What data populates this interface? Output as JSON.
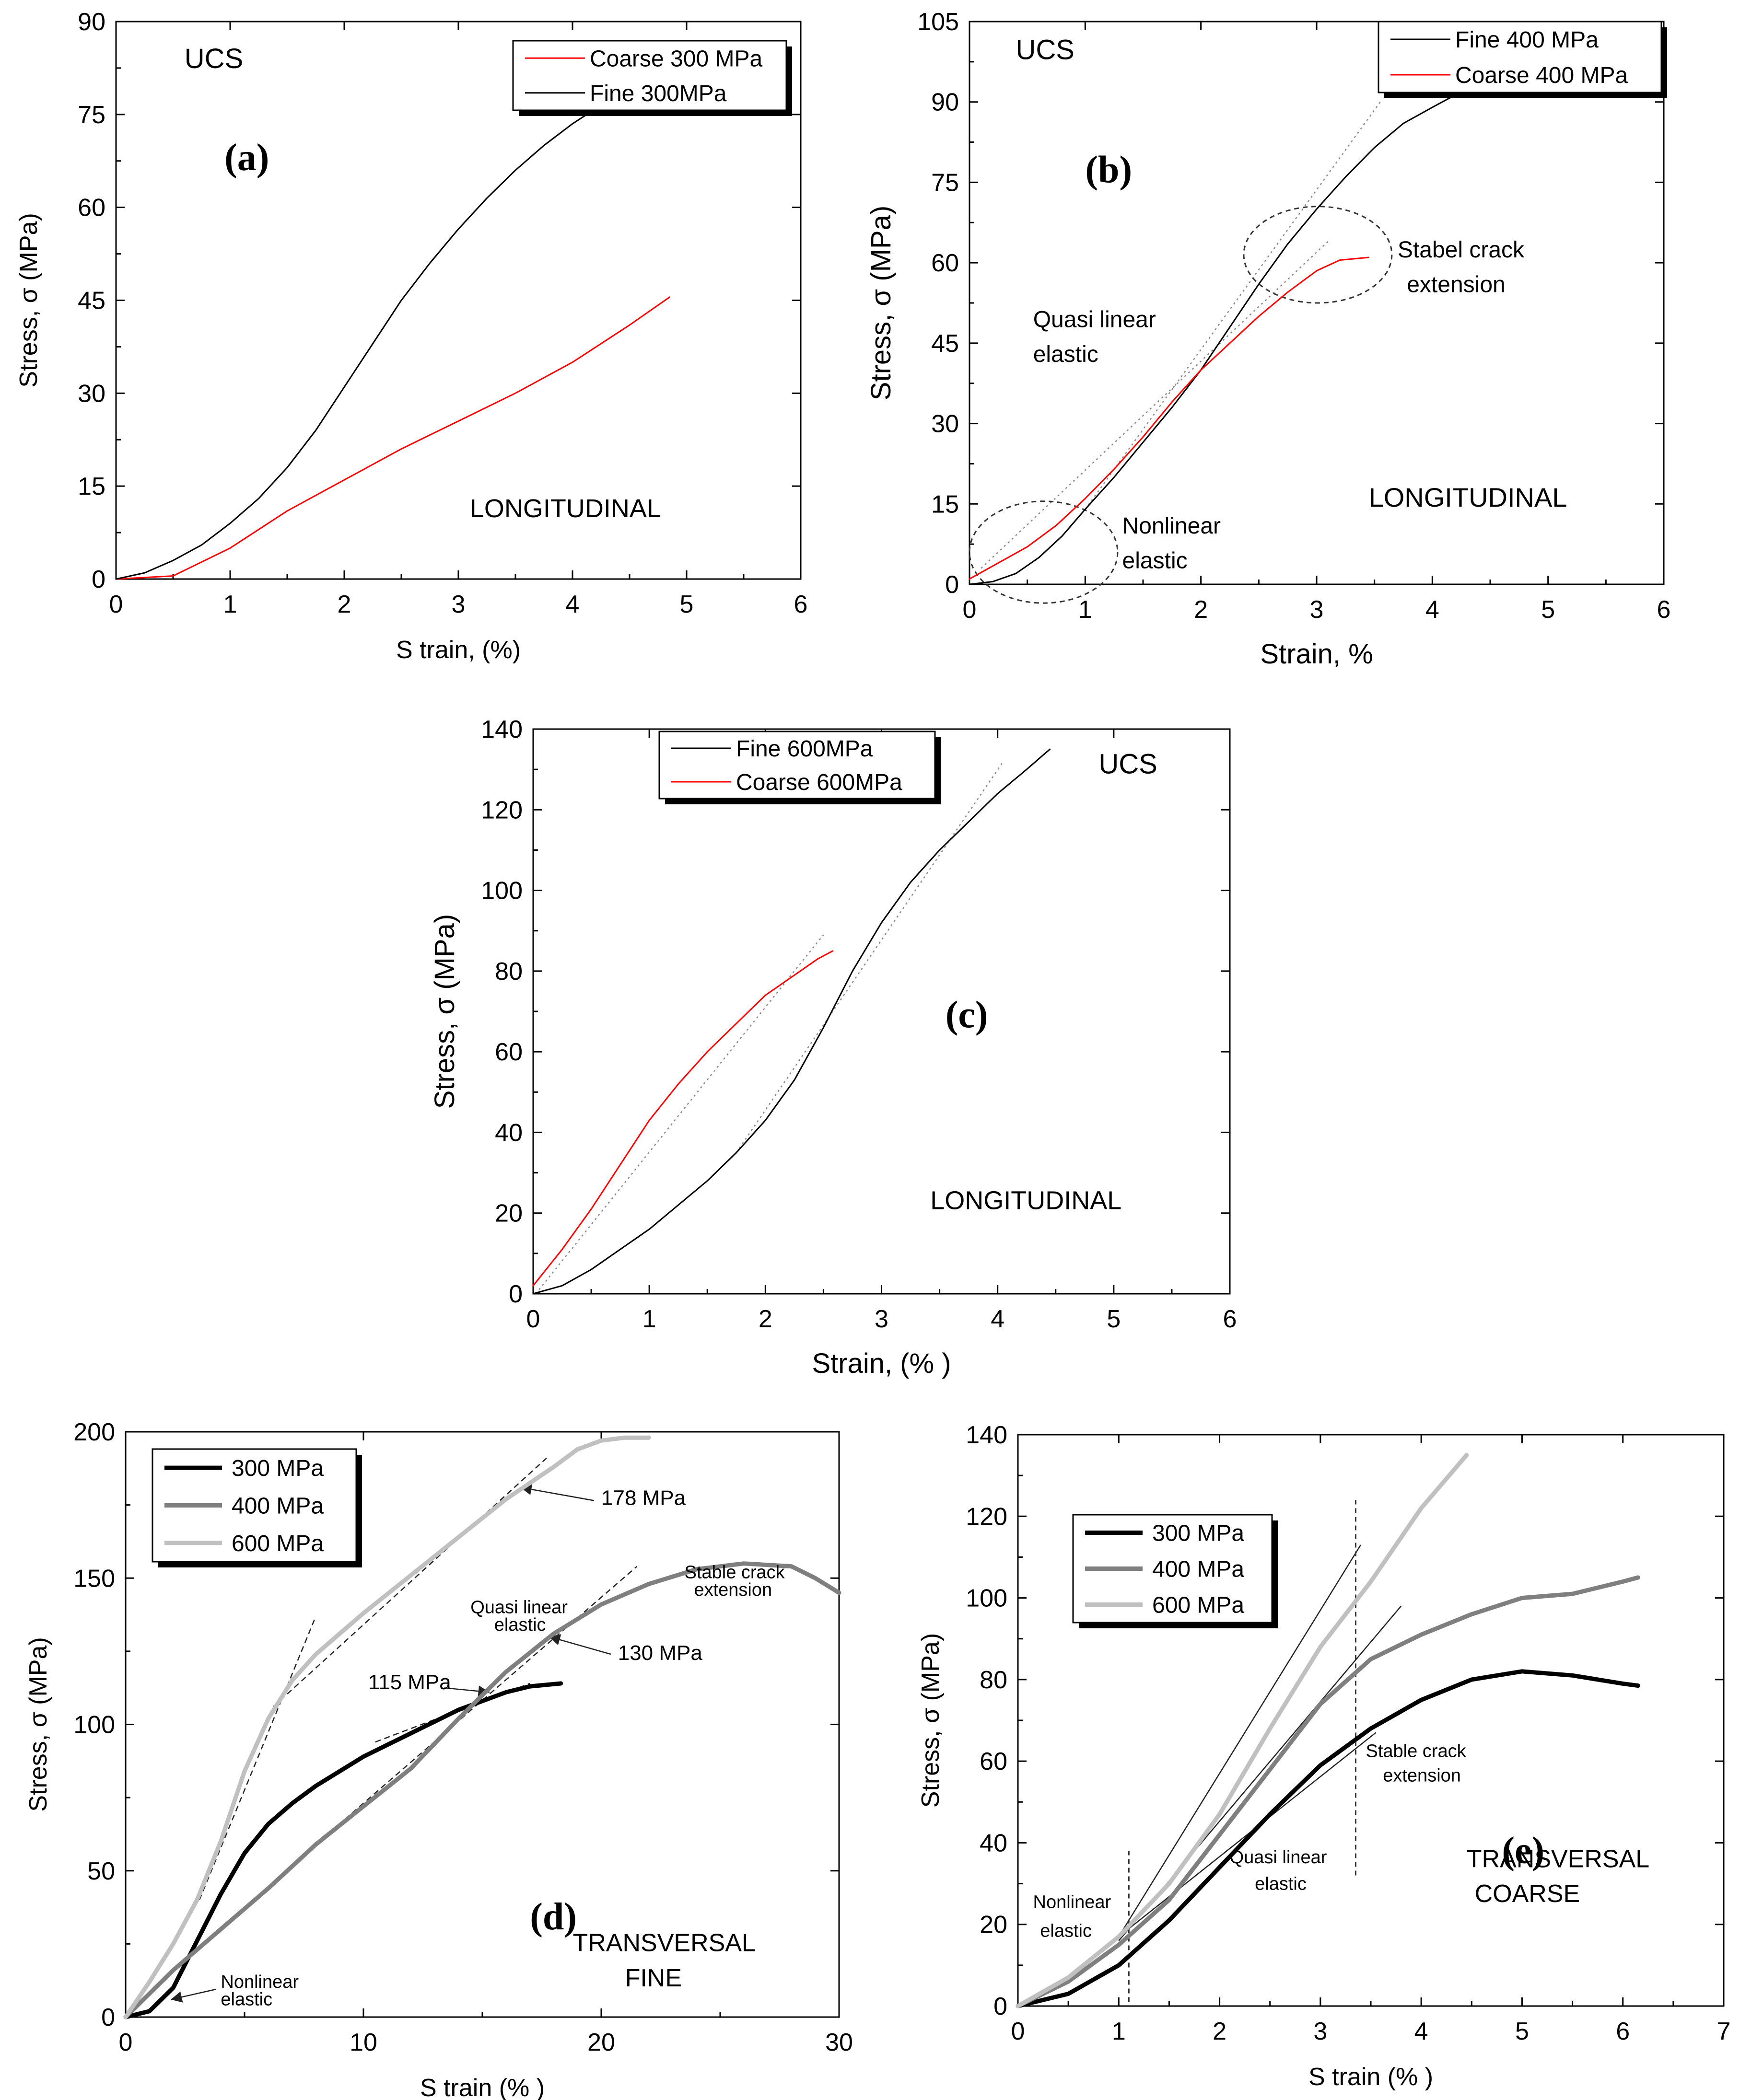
{
  "chart_data": [
    {
      "id": "a",
      "type": "line",
      "panel_label": "(a)",
      "xlabel": "S train,  (%)",
      "ylabel": "Stress, σ (MPa)",
      "xlim": [
        0,
        6
      ],
      "ylim": [
        0,
        90
      ],
      "xticks": [
        "0",
        "1",
        "2",
        "3",
        "4",
        "5",
        "6"
      ],
      "yticks": [
        "0",
        "15",
        "30",
        "45",
        "60",
        "75",
        "90"
      ],
      "legend": {
        "placement": "top-right"
      },
      "annotations": [
        "UCS",
        "LONGITUDINAL"
      ],
      "series": [
        {
          "name": "Coarse 300 MPa",
          "color": "#ff0000",
          "width": "thin",
          "x": [
            0,
            0.5,
            1,
            1.5,
            2,
            2.5,
            3,
            3.5,
            4,
            4.5,
            4.85
          ],
          "y": [
            0,
            0.5,
            5,
            11,
            16,
            21,
            25.5,
            30,
            35,
            41,
            45.5
          ]
        },
        {
          "name": "Fine 300MPa",
          "color": "#000000",
          "width": "thin",
          "x": [
            0,
            0.25,
            0.5,
            0.75,
            1,
            1.25,
            1.5,
            1.75,
            2,
            2.25,
            2.5,
            2.75,
            3,
            3.25,
            3.5,
            3.75,
            4,
            4.25,
            4.5
          ],
          "y": [
            0,
            1,
            3,
            5.5,
            9,
            13,
            18,
            24,
            31,
            38,
            45,
            51,
            56.5,
            61.5,
            66,
            70,
            73.5,
            76.5,
            79
          ]
        }
      ]
    },
    {
      "id": "b",
      "type": "line",
      "panel_label": "(b)",
      "xlabel": "Strain,  %",
      "ylabel": "Stress, σ (MPa)",
      "xlim": [
        0,
        6
      ],
      "ylim": [
        0,
        105
      ],
      "xticks": [
        "0",
        "1",
        "2",
        "3",
        "4",
        "5",
        "6"
      ],
      "yticks": [
        "0",
        "15",
        "30",
        "45",
        "60",
        "75",
        "90",
        "105"
      ],
      "legend": {
        "placement": "top-right"
      },
      "annotations": [
        "UCS",
        "LONGITUDINAL",
        "Quasi linear",
        "elastic",
        "Nonlinear",
        "elastic",
        "Stabel crack",
        "extension"
      ],
      "series": [
        {
          "name": "Fine 400 MPa",
          "color": "#000000",
          "width": "thin",
          "x": [
            0,
            0.2,
            0.4,
            0.6,
            0.8,
            1,
            1.25,
            1.5,
            1.75,
            2,
            2.25,
            2.5,
            2.75,
            3,
            3.25,
            3.5,
            3.75,
            4,
            4.3
          ],
          "y": [
            0,
            0.5,
            2,
            5,
            9,
            14,
            20,
            26.5,
            33,
            40,
            48,
            56,
            63.5,
            70,
            76,
            81.5,
            86,
            89,
            92.5
          ]
        },
        {
          "name": "Coarse 400 MPa",
          "color": "#ff0000",
          "width": "thin",
          "x": [
            0,
            0.25,
            0.5,
            0.75,
            1,
            1.25,
            1.5,
            1.75,
            2,
            2.25,
            2.5,
            2.75,
            3,
            3.2,
            3.45
          ],
          "y": [
            1,
            4,
            7,
            11,
            16,
            21.5,
            27.5,
            34,
            40,
            45,
            50,
            54.5,
            58.5,
            60.5,
            61
          ]
        }
      ]
    },
    {
      "id": "c",
      "type": "line",
      "panel_label": "(c)",
      "xlabel": "Strain, (% )",
      "ylabel": "Stress, σ (MPa)",
      "xlim": [
        0,
        6
      ],
      "ylim": [
        0,
        140
      ],
      "xticks": [
        "0",
        "1",
        "2",
        "3",
        "4",
        "5",
        "6"
      ],
      "yticks": [
        "0",
        "20",
        "40",
        "60",
        "80",
        "100",
        "120",
        "140"
      ],
      "legend": {
        "placement": "top-left"
      },
      "annotations": [
        "UCS",
        "LONGITUDINAL"
      ],
      "series": [
        {
          "name": "Fine 600MPa",
          "color": "#000000",
          "width": "thin",
          "x": [
            0,
            0.25,
            0.5,
            0.75,
            1,
            1.25,
            1.5,
            1.75,
            2,
            2.25,
            2.5,
            2.75,
            3,
            3.25,
            3.5,
            3.75,
            4,
            4.25,
            4.45
          ],
          "y": [
            0,
            2,
            6,
            11,
            16,
            22,
            28,
            35,
            43,
            53,
            66,
            80,
            92,
            102,
            110,
            117,
            124,
            130,
            135
          ]
        },
        {
          "name": "Coarse 600MPa",
          "color": "#ff0000",
          "width": "thin",
          "x": [
            0,
            0.25,
            0.5,
            0.75,
            1,
            1.25,
            1.5,
            1.75,
            2,
            2.25,
            2.45,
            2.58
          ],
          "y": [
            2,
            11,
            21,
            32,
            43,
            52,
            60,
            67,
            74,
            79,
            83,
            85
          ]
        }
      ]
    },
    {
      "id": "d",
      "type": "line",
      "panel_label": "(d)",
      "xlabel": "S train  (%  )",
      "ylabel": "Stress, σ (MPa)",
      "xlim": [
        0,
        30
      ],
      "ylim": [
        0,
        200
      ],
      "xticks": [
        "0",
        "10",
        "20",
        "30"
      ],
      "yticks": [
        "0",
        "50",
        "100",
        "150",
        "200"
      ],
      "legend": {
        "placement": "top-left"
      },
      "annotations": [
        "TRANSVERSAL",
        "FINE",
        "Nonlinear",
        "elastic",
        "Quasi linear",
        "elastic",
        "Stable crack",
        "extension",
        "178 MPa",
        "130 MPa",
        "115 MPa"
      ],
      "series": [
        {
          "name": "300 MPa",
          "color": "#000000",
          "width": "thick",
          "x": [
            0,
            1,
            2,
            3,
            4,
            5,
            6,
            7,
            8,
            9,
            10,
            11,
            12,
            13,
            14,
            15,
            16,
            17,
            18.3
          ],
          "y": [
            0,
            2,
            10,
            26,
            42,
            56,
            66,
            73,
            79,
            84,
            89,
            93,
            97,
            101,
            105,
            108,
            111,
            113,
            114
          ]
        },
        {
          "name": "400 MPa",
          "color": "#7f7f7f",
          "width": "thick",
          "x": [
            0,
            2,
            4,
            6,
            8,
            10,
            12,
            14,
            16,
            18,
            20,
            22,
            24,
            26,
            28,
            29,
            30
          ],
          "y": [
            0,
            16,
            30,
            44,
            59,
            72,
            85,
            102,
            118,
            131,
            141,
            148,
            153,
            155,
            154,
            150,
            145
          ]
        },
        {
          "name": "600 MPa",
          "color": "#c0c0c0",
          "width": "thick",
          "x": [
            0,
            1,
            2,
            3,
            4,
            5,
            6,
            7,
            8,
            9,
            10,
            12,
            14,
            16,
            18,
            19,
            20,
            21,
            22
          ],
          "y": [
            0,
            12,
            25,
            40,
            60,
            84,
            102,
            115,
            124,
            131,
            138,
            151,
            164,
            177,
            188,
            194,
            197,
            198,
            198
          ]
        }
      ]
    },
    {
      "id": "e",
      "type": "line",
      "panel_label": "(e)",
      "xlabel": "S train  (%  )",
      "ylabel": "Stress, σ (MPa)",
      "xlim": [
        0,
        7
      ],
      "ylim": [
        0,
        140
      ],
      "xticks": [
        "0",
        "1",
        "2",
        "3",
        "4",
        "5",
        "6",
        "7"
      ],
      "yticks": [
        "0",
        "20",
        "40",
        "60",
        "80",
        "100",
        "120",
        "140"
      ],
      "legend": {
        "placement": "top-left"
      },
      "annotations": [
        "TRANSVERSAL",
        "COARSE",
        "Nonlinear",
        "elastic",
        "Quasi linear",
        "elastic",
        "Stable crack",
        "extension"
      ],
      "series": [
        {
          "name": "300 MPa",
          "color": "#000000",
          "width": "thick",
          "x": [
            0,
            0.5,
            1,
            1.5,
            2,
            2.5,
            3,
            3.5,
            4,
            4.5,
            5,
            5.5,
            6,
            6.15
          ],
          "y": [
            0,
            3,
            10,
            21,
            34,
            47,
            59,
            68,
            75,
            80,
            82,
            81,
            79,
            78.5
          ]
        },
        {
          "name": "400 MPa",
          "color": "#7f7f7f",
          "width": "thick",
          "x": [
            0,
            0.5,
            1,
            1.5,
            2,
            2.5,
            3,
            3.5,
            4,
            4.5,
            5,
            5.5,
            6,
            6.15
          ],
          "y": [
            0,
            6,
            15,
            26,
            42,
            58,
            74,
            85,
            91,
            96,
            100,
            101,
            104,
            105
          ]
        },
        {
          "name": "600 MPa",
          "color": "#c0c0c0",
          "width": "thick",
          "x": [
            0,
            0.5,
            1,
            1.5,
            2,
            2.5,
            3,
            3.5,
            4,
            4.45
          ],
          "y": [
            0,
            7,
            17,
            30,
            47,
            68,
            88,
            104,
            122,
            135
          ]
        }
      ]
    }
  ]
}
